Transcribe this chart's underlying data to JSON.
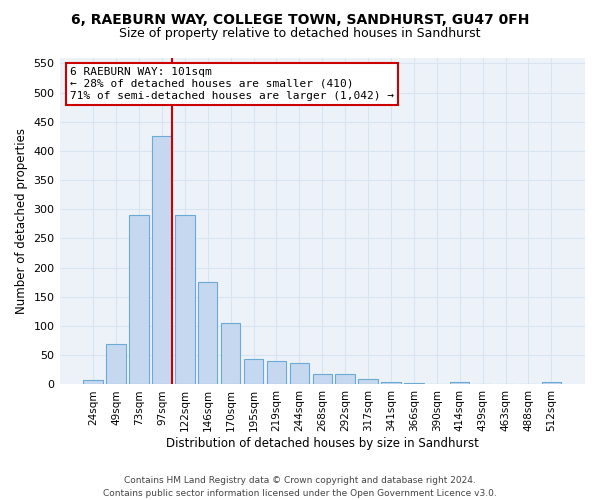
{
  "title": "6, RAEBURN WAY, COLLEGE TOWN, SANDHURST, GU47 0FH",
  "subtitle": "Size of property relative to detached houses in Sandhurst",
  "xlabel": "Distribution of detached houses by size in Sandhurst",
  "ylabel": "Number of detached properties",
  "bar_color": "#c5d8f0",
  "bar_edge_color": "#6aaad4",
  "categories": [
    "24sqm",
    "49sqm",
    "73sqm",
    "97sqm",
    "122sqm",
    "146sqm",
    "170sqm",
    "195sqm",
    "219sqm",
    "244sqm",
    "268sqm",
    "292sqm",
    "317sqm",
    "341sqm",
    "366sqm",
    "390sqm",
    "414sqm",
    "439sqm",
    "463sqm",
    "488sqm",
    "512sqm"
  ],
  "values": [
    8,
    70,
    290,
    425,
    290,
    175,
    105,
    43,
    41,
    37,
    18,
    18,
    9,
    4,
    2,
    0,
    5,
    0,
    0,
    0,
    5
  ],
  "ylim": [
    0,
    560
  ],
  "yticks": [
    0,
    50,
    100,
    150,
    200,
    250,
    300,
    350,
    400,
    450,
    500,
    550
  ],
  "vline_x_index": 3,
  "vline_color": "#cc0000",
  "annotation_text": "6 RAEBURN WAY: 101sqm\n← 28% of detached houses are smaller (410)\n71% of semi-detached houses are larger (1,042) →",
  "annotation_box_color": "#ffffff",
  "annotation_box_edge": "#cc0000",
  "grid_color": "#d8e4f0",
  "bg_color": "#edf2f9",
  "footer": "Contains HM Land Registry data © Crown copyright and database right 2024.\nContains public sector information licensed under the Open Government Licence v3.0.",
  "title_fontsize": 10,
  "subtitle_fontsize": 9,
  "annotation_fontsize": 8,
  "footer_fontsize": 6.5
}
